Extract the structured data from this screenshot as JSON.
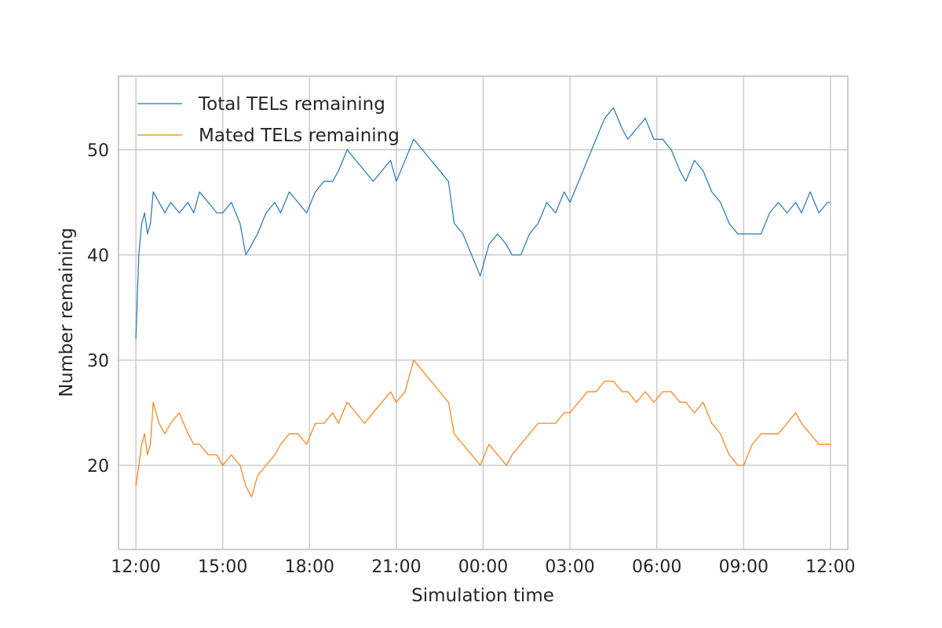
{
  "chart_data": {
    "type": "line",
    "title": "",
    "xlabel": "Simulation time",
    "ylabel": "Number remaining",
    "xlim": [
      -0.6,
      24.6
    ],
    "ylim": [
      12,
      57
    ],
    "x_ticks": [
      {
        "value": 0,
        "label": "12:00"
      },
      {
        "value": 3,
        "label": "15:00"
      },
      {
        "value": 6,
        "label": "18:00"
      },
      {
        "value": 9,
        "label": "21:00"
      },
      {
        "value": 12,
        "label": "00:00"
      },
      {
        "value": 15,
        "label": "03:00"
      },
      {
        "value": 18,
        "label": "06:00"
      },
      {
        "value": 21,
        "label": "09:00"
      },
      {
        "value": 24,
        "label": "12:00"
      }
    ],
    "y_ticks": [
      {
        "value": 20,
        "label": "20"
      },
      {
        "value": 30,
        "label": "30"
      },
      {
        "value": 40,
        "label": "40"
      },
      {
        "value": 50,
        "label": "50"
      }
    ],
    "grid": true,
    "legend_position": "top-left",
    "series": [
      {
        "name": "Total TELs remaining",
        "color": "#1f77b4",
        "x": [
          0,
          0.1,
          0.2,
          0.3,
          0.4,
          0.5,
          0.6,
          0.8,
          1.0,
          1.2,
          1.5,
          1.8,
          2.0,
          2.2,
          2.5,
          2.8,
          3.0,
          3.3,
          3.6,
          3.8,
          4.0,
          4.2,
          4.5,
          4.8,
          5.0,
          5.3,
          5.6,
          5.9,
          6.2,
          6.5,
          6.8,
          7.0,
          7.3,
          7.6,
          7.9,
          8.2,
          8.5,
          8.8,
          9.0,
          9.3,
          9.6,
          9.9,
          10.2,
          10.5,
          10.8,
          11.0,
          11.3,
          11.6,
          11.9,
          12.2,
          12.5,
          12.8,
          13.0,
          13.3,
          13.6,
          13.9,
          14.2,
          14.5,
          14.8,
          15.0,
          15.3,
          15.6,
          15.9,
          16.2,
          16.5,
          16.8,
          17.0,
          17.3,
          17.6,
          17.9,
          18.2,
          18.5,
          18.8,
          19.0,
          19.3,
          19.6,
          19.9,
          20.2,
          20.5,
          20.8,
          21.0,
          21.3,
          21.6,
          21.9,
          22.2,
          22.5,
          22.8,
          23.0,
          23.3,
          23.6,
          23.9,
          24.0
        ],
        "values": [
          32,
          40,
          43,
          44,
          42,
          43,
          46,
          45,
          44,
          45,
          44,
          45,
          44,
          46,
          45,
          44,
          44,
          45,
          43,
          40,
          41,
          42,
          44,
          45,
          44,
          46,
          45,
          44,
          46,
          47,
          47,
          48,
          50,
          49,
          48,
          47,
          48,
          49,
          47,
          49,
          51,
          50,
          49,
          48,
          47,
          43,
          42,
          40,
          38,
          41,
          42,
          41,
          40,
          40,
          42,
          43,
          45,
          44,
          46,
          45,
          47,
          49,
          51,
          53,
          54,
          52,
          51,
          52,
          53,
          51,
          51,
          50,
          48,
          47,
          49,
          48,
          46,
          45,
          43,
          42,
          42,
          42,
          42,
          44,
          45,
          44,
          45,
          44,
          46,
          44,
          45,
          45
        ]
      },
      {
        "name": "Mated TELs remaining",
        "color": "#ff7f0e",
        "x": [
          0,
          0.1,
          0.2,
          0.3,
          0.4,
          0.5,
          0.6,
          0.8,
          1.0,
          1.2,
          1.5,
          1.8,
          2.0,
          2.2,
          2.5,
          2.8,
          3.0,
          3.3,
          3.6,
          3.8,
          4.0,
          4.2,
          4.5,
          4.8,
          5.0,
          5.3,
          5.6,
          5.9,
          6.2,
          6.5,
          6.8,
          7.0,
          7.3,
          7.6,
          7.9,
          8.2,
          8.5,
          8.8,
          9.0,
          9.3,
          9.6,
          9.9,
          10.2,
          10.5,
          10.8,
          11.0,
          11.3,
          11.6,
          11.9,
          12.2,
          12.5,
          12.8,
          13.0,
          13.3,
          13.6,
          13.9,
          14.2,
          14.5,
          14.8,
          15.0,
          15.3,
          15.6,
          15.9,
          16.2,
          16.5,
          16.8,
          17.0,
          17.3,
          17.6,
          17.9,
          18.2,
          18.5,
          18.8,
          19.0,
          19.3,
          19.6,
          19.9,
          20.2,
          20.5,
          20.8,
          21.0,
          21.3,
          21.6,
          21.9,
          22.2,
          22.5,
          22.8,
          23.0,
          23.3,
          23.6,
          23.9,
          24.0
        ],
        "values": [
          18,
          20,
          22,
          23,
          21,
          22,
          26,
          24,
          23,
          24,
          25,
          23,
          22,
          22,
          21,
          21,
          20,
          21,
          20,
          18,
          17,
          19,
          20,
          21,
          22,
          23,
          23,
          22,
          24,
          24,
          25,
          24,
          26,
          25,
          24,
          25,
          26,
          27,
          26,
          27,
          30,
          29,
          28,
          27,
          26,
          23,
          22,
          21,
          20,
          22,
          21,
          20,
          21,
          22,
          23,
          24,
          24,
          24,
          25,
          25,
          26,
          27,
          27,
          28,
          28,
          27,
          27,
          26,
          27,
          26,
          27,
          27,
          26,
          26,
          25,
          26,
          24,
          23,
          21,
          20,
          20,
          22,
          23,
          23,
          23,
          24,
          25,
          24,
          23,
          22,
          22,
          22
        ]
      }
    ]
  }
}
